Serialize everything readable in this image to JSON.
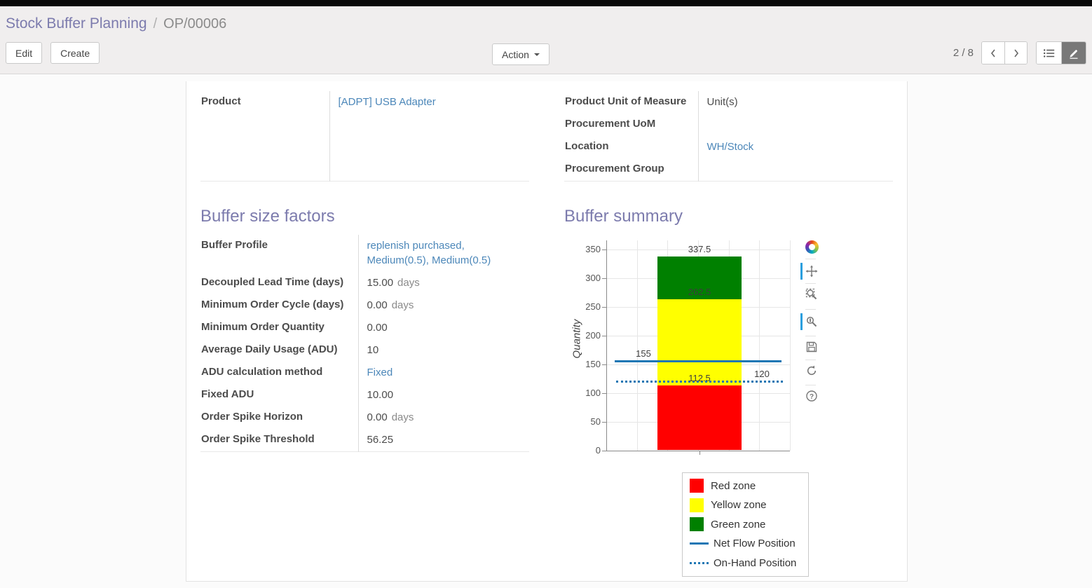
{
  "colors": {
    "heading": "#7c7bad",
    "link": "#4c87b9",
    "active_switcher_bg": "#787878",
    "red_zone": "#ff0000",
    "yellow_zone": "#ffff00",
    "green_zone": "#008000",
    "flow_blue": "#1f77b4"
  },
  "breadcrumb": {
    "parent": "Stock Buffer Planning",
    "separator": "/",
    "current": "OP/00006"
  },
  "toolbar": {
    "edit_label": "Edit",
    "create_label": "Create",
    "action_label": "Action",
    "pager": "2 / 8",
    "icons": [
      "prev-arrow-icon",
      "next-arrow-icon",
      "list-view-icon",
      "form-view-icon"
    ],
    "active_view": "form"
  },
  "form": {
    "top_left": {
      "rows": [
        {
          "label": "Product",
          "value": "[ADPT] USB Adapter",
          "link": true
        }
      ]
    },
    "top_right": {
      "rows": [
        {
          "label": "Product Unit of Measure",
          "value": "Unit(s)"
        },
        {
          "label": "Procurement UoM",
          "value": ""
        },
        {
          "label": "Location",
          "value": "WH/Stock",
          "link": true
        },
        {
          "label": "Procurement Group",
          "value": ""
        }
      ]
    },
    "factors": {
      "title": "Buffer size factors",
      "rows": [
        {
          "label": "Buffer Profile",
          "value": "replenish purchased, Medium(0.5), Medium(0.5)",
          "link": true
        },
        {
          "label": "Decoupled Lead Time (days)",
          "value": "15.00",
          "suffix": "days"
        },
        {
          "label": "Minimum Order Cycle (days)",
          "value": "0.00",
          "suffix": "days"
        },
        {
          "label": "Minimum Order Quantity",
          "value": "0.00"
        },
        {
          "label": "Average Daily Usage (ADU)",
          "value": "10"
        },
        {
          "label": "ADU calculation method",
          "value": "Fixed",
          "link": true
        },
        {
          "label": "Fixed ADU",
          "value": "10.00"
        },
        {
          "label": "Order Spike Horizon",
          "value": "0.00",
          "suffix": "days"
        },
        {
          "label": "Order Spike Threshold",
          "value": "56.25"
        }
      ]
    },
    "summary": {
      "title": "Buffer summary"
    }
  },
  "chart_data": {
    "type": "bar",
    "title": "Buffer summary",
    "ylabel": "Quantity",
    "ylim": [
      0,
      350
    ],
    "yticks": [
      0,
      50,
      100,
      150,
      200,
      250,
      300,
      350
    ],
    "grid": true,
    "series": [
      {
        "name": "Red zone",
        "kind": "bar-segment",
        "from": 0,
        "to": 112.5,
        "color": "#ff0000"
      },
      {
        "name": "Yellow zone",
        "kind": "bar-segment",
        "from": 112.5,
        "to": 262.5,
        "color": "#ffff00"
      },
      {
        "name": "Green zone",
        "kind": "bar-segment",
        "from": 262.5,
        "to": 337.5,
        "color": "#008000"
      },
      {
        "name": "Net Flow Position",
        "kind": "hline",
        "value": 155,
        "style": "solid",
        "color": "#1f77b4"
      },
      {
        "name": "On-Hand Position",
        "kind": "hline",
        "value": 120,
        "style": "dotted",
        "color": "#1f77b4"
      }
    ],
    "annotations": [
      {
        "text": "337.5",
        "value": 337.5,
        "anchor": "bar-center"
      },
      {
        "text": "262.5",
        "value": 262.5,
        "anchor": "bar-center"
      },
      {
        "text": "155",
        "value": 155,
        "anchor": "left"
      },
      {
        "text": "112.5",
        "value": 112.5,
        "anchor": "bar-center"
      },
      {
        "text": "120",
        "value": 120,
        "anchor": "right"
      }
    ],
    "legend_position": "bottom-right",
    "legend": [
      {
        "label": "Red zone",
        "swatch": "square",
        "color": "#ff0000"
      },
      {
        "label": "Yellow zone",
        "swatch": "square",
        "color": "#ffff00"
      },
      {
        "label": "Green zone",
        "swatch": "square",
        "color": "#008000"
      },
      {
        "label": "Net Flow Position",
        "swatch": "line",
        "color": "#1f77b4"
      },
      {
        "label": "On-Hand Position",
        "swatch": "dotted-line",
        "color": "#1f77b4"
      }
    ],
    "toolbar_icons": [
      "bokeh-logo-icon",
      "pan-icon",
      "box-zoom-icon",
      "wheel-zoom-icon",
      "save-icon",
      "reset-icon",
      "help-icon"
    ],
    "active_tools": [
      "pan",
      "wheel-zoom"
    ]
  }
}
